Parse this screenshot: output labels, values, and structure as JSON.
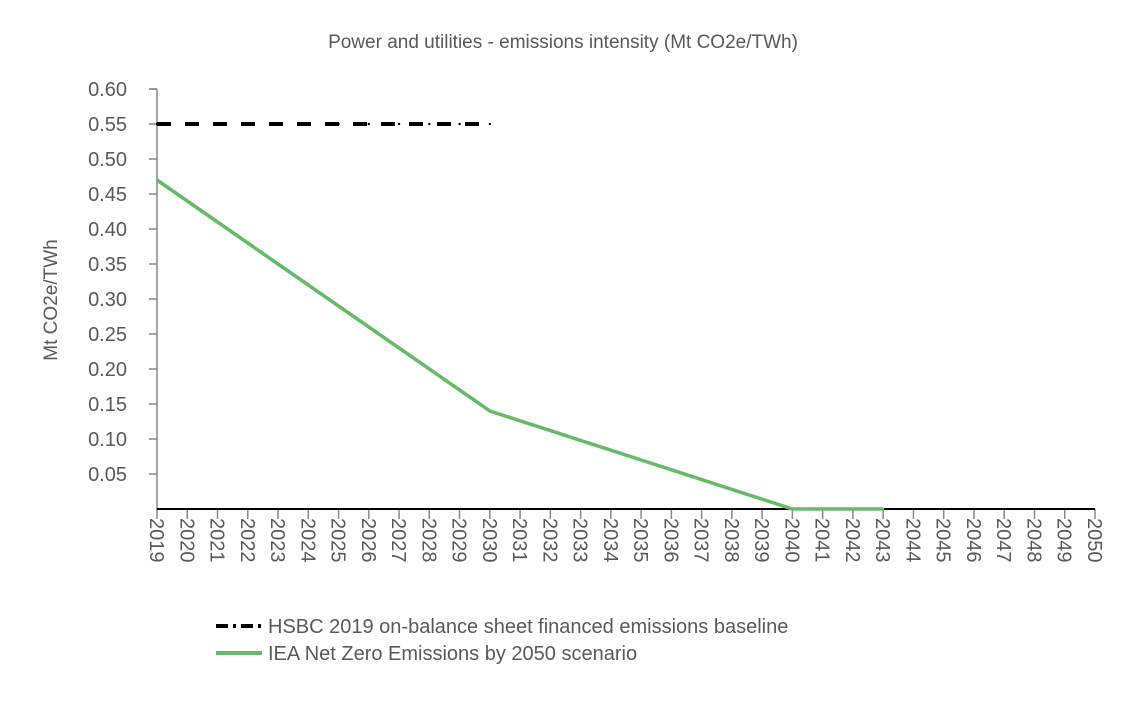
{
  "chart_data": {
    "type": "line",
    "title": "Power and utilities - emissions intensity (Mt CO2e/TWh)",
    "xlabel": "",
    "ylabel": "Mt CO2e/TWh",
    "ylim": [
      0,
      0.6
    ],
    "yticks": [
      "0.05",
      "0.10",
      "0.15",
      "0.20",
      "0.25",
      "0.30",
      "0.35",
      "0.40",
      "0.45",
      "0.50",
      "0.55",
      "0.60"
    ],
    "x": [
      2019,
      2020,
      2021,
      2022,
      2023,
      2024,
      2025,
      2026,
      2027,
      2028,
      2029,
      2030,
      2031,
      2032,
      2033,
      2034,
      2035,
      2036,
      2037,
      2038,
      2039,
      2040,
      2041,
      2042,
      2043,
      2044,
      2045,
      2046,
      2047,
      2048,
      2049,
      2050
    ],
    "grid": false,
    "legend_position": "bottom",
    "series": [
      {
        "name": "HSBC 2019 on-balance sheet financed emissions baseline",
        "color": "#000000",
        "style": "dash-dot",
        "values": [
          0.55,
          0.55,
          0.55,
          0.55,
          0.55,
          0.55,
          0.55,
          0.55,
          0.55,
          0.55,
          0.55,
          0.55,
          null,
          null,
          null,
          null,
          null,
          null,
          null,
          null,
          null,
          null,
          null,
          null,
          null,
          null,
          null,
          null,
          null,
          null,
          null,
          null
        ]
      },
      {
        "name": "IEA Net Zero Emissions by 2050 scenario",
        "color": "#66bb6a",
        "style": "solid",
        "values": [
          0.47,
          0.44,
          0.41,
          0.38,
          0.35,
          0.32,
          0.29,
          0.26,
          0.23,
          0.2,
          0.17,
          0.14,
          0.126,
          0.112,
          0.098,
          0.084,
          0.07,
          0.056,
          0.042,
          0.028,
          0.014,
          0,
          0,
          0,
          0,
          null,
          null,
          null,
          null,
          null,
          null,
          null
        ]
      }
    ]
  }
}
